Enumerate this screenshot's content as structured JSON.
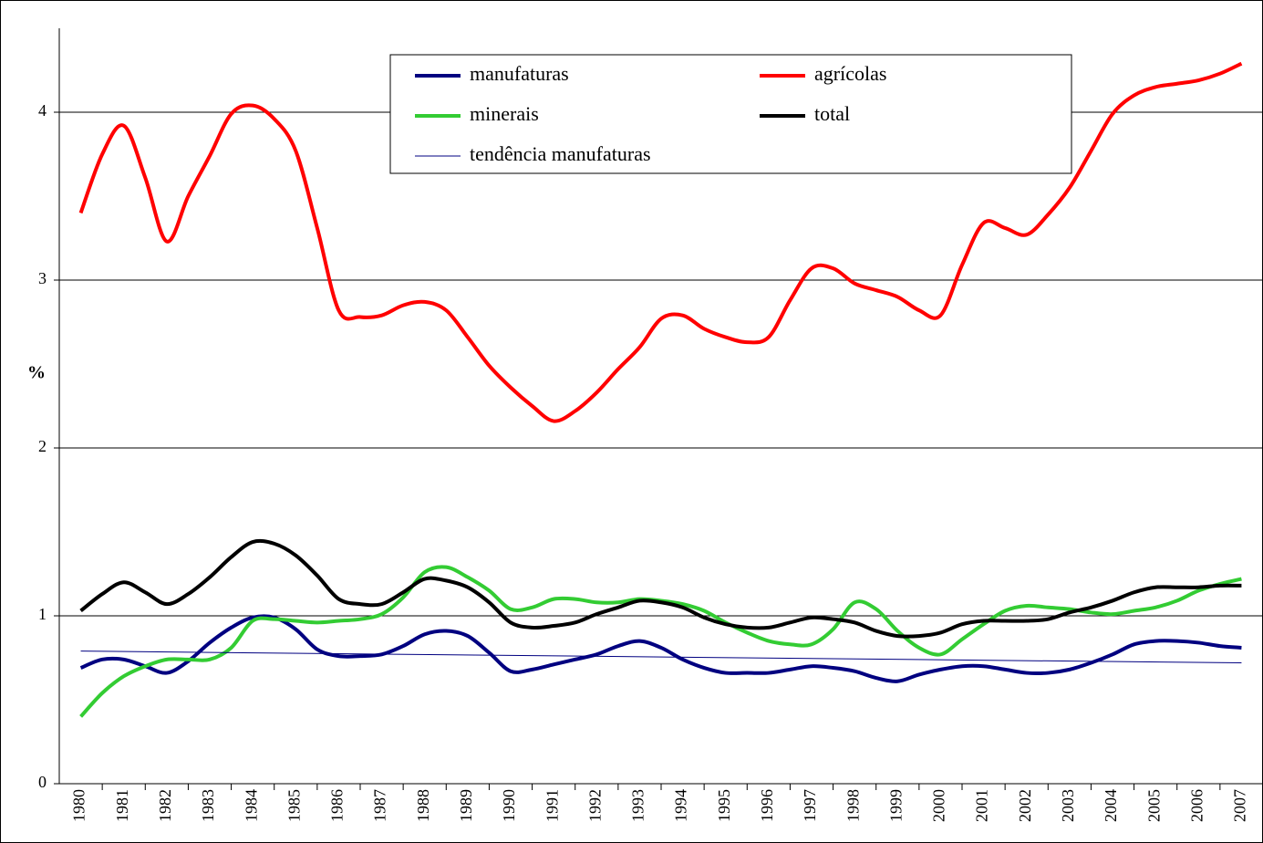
{
  "chart_data": {
    "type": "line",
    "ylabel": "%",
    "x": [
      1980,
      1980.5,
      1981,
      1981.5,
      1982,
      1982.5,
      1983,
      1983.5,
      1984,
      1984.5,
      1985,
      1985.5,
      1986,
      1986.5,
      1987,
      1987.5,
      1988,
      1988.5,
      1989,
      1989.5,
      1990,
      1990.5,
      1991,
      1991.5,
      1992,
      1992.5,
      1993,
      1993.5,
      1994,
      1994.5,
      1995,
      1995.5,
      1996,
      1996.5,
      1997,
      1997.5,
      1998,
      1998.5,
      1999,
      1999.5,
      2000,
      2000.5,
      2001,
      2001.5,
      2002,
      2002.5,
      2003,
      2003.5,
      2004,
      2004.5,
      2005,
      2005.5,
      2006,
      2006.5,
      2007
    ],
    "xlim": [
      1979.5,
      2007.5
    ],
    "xticks": [
      1980,
      1981,
      1982,
      1983,
      1984,
      1985,
      1986,
      1987,
      1988,
      1989,
      1990,
      1991,
      1992,
      1993,
      1994,
      1995,
      1996,
      1997,
      1998,
      1999,
      2000,
      2001,
      2002,
      2003,
      2004,
      2005,
      2006,
      2007
    ],
    "ylim": [
      0,
      4.5
    ],
    "yticks": [
      0,
      1,
      2,
      3,
      4
    ],
    "grid": true,
    "legend": "top",
    "series": [
      {
        "name": "manufaturas",
        "color": "#000080",
        "line_width": 4,
        "values": [
          0.69,
          0.74,
          0.74,
          0.7,
          0.66,
          0.73,
          0.84,
          0.93,
          0.99,
          0.99,
          0.92,
          0.8,
          0.76,
          0.76,
          0.77,
          0.82,
          0.89,
          0.91,
          0.88,
          0.78,
          0.67,
          0.68,
          0.71,
          0.74,
          0.77,
          0.82,
          0.85,
          0.81,
          0.74,
          0.69,
          0.66,
          0.66,
          0.66,
          0.68,
          0.7,
          0.69,
          0.67,
          0.63,
          0.61,
          0.65,
          0.68,
          0.7,
          0.7,
          0.68,
          0.66,
          0.66,
          0.68,
          0.72,
          0.77,
          0.83,
          0.85,
          0.85,
          0.84,
          0.82,
          0.81
        ]
      },
      {
        "name": "agrícolas",
        "color": "#ff0000",
        "line_width": 4,
        "values": [
          3.4,
          3.75,
          3.92,
          3.61,
          3.23,
          3.5,
          3.74,
          3.99,
          4.04,
          3.96,
          3.77,
          3.31,
          2.82,
          2.78,
          2.79,
          2.85,
          2.87,
          2.82,
          2.66,
          2.49,
          2.36,
          2.25,
          2.16,
          2.22,
          2.33,
          2.47,
          2.6,
          2.77,
          2.79,
          2.71,
          2.66,
          2.63,
          2.66,
          2.88,
          3.07,
          3.07,
          2.98,
          2.94,
          2.9,
          2.82,
          2.79,
          3.09,
          3.34,
          3.31,
          3.27,
          3.39,
          3.55,
          3.77,
          3.99,
          4.1,
          4.15,
          4.17,
          4.19,
          4.23,
          4.29
        ]
      },
      {
        "name": "minerais",
        "color": "#33cc33",
        "line_width": 4,
        "values": [
          0.4,
          0.54,
          0.64,
          0.7,
          0.74,
          0.74,
          0.74,
          0.81,
          0.97,
          0.98,
          0.97,
          0.96,
          0.97,
          0.98,
          1.01,
          1.11,
          1.26,
          1.29,
          1.23,
          1.15,
          1.04,
          1.05,
          1.1,
          1.1,
          1.08,
          1.08,
          1.1,
          1.09,
          1.07,
          1.03,
          0.96,
          0.9,
          0.85,
          0.83,
          0.83,
          0.92,
          1.08,
          1.04,
          0.91,
          0.81,
          0.77,
          0.86,
          0.95,
          1.03,
          1.06,
          1.05,
          1.04,
          1.02,
          1.01,
          1.03,
          1.05,
          1.09,
          1.15,
          1.19,
          1.22
        ]
      },
      {
        "name": "total",
        "color": "#000000",
        "line_width": 4,
        "values": [
          1.03,
          1.13,
          1.2,
          1.14,
          1.07,
          1.13,
          1.23,
          1.35,
          1.44,
          1.43,
          1.36,
          1.24,
          1.1,
          1.07,
          1.07,
          1.14,
          1.22,
          1.21,
          1.17,
          1.08,
          0.96,
          0.93,
          0.94,
          0.96,
          1.01,
          1.05,
          1.09,
          1.08,
          1.05,
          0.99,
          0.95,
          0.93,
          0.93,
          0.96,
          0.99,
          0.98,
          0.96,
          0.91,
          0.88,
          0.88,
          0.9,
          0.95,
          0.97,
          0.97,
          0.97,
          0.98,
          1.02,
          1.05,
          1.09,
          1.14,
          1.17,
          1.17,
          1.17,
          1.18,
          1.18
        ]
      },
      {
        "name": "tendência manufaturas",
        "color": "#000080",
        "line_width": 1,
        "x": [
          1980,
          2007
        ],
        "values": [
          0.79,
          0.72
        ]
      }
    ]
  }
}
